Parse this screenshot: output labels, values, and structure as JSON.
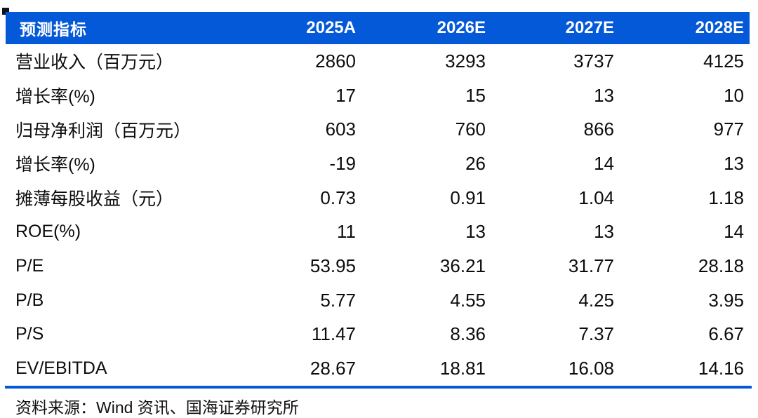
{
  "colors": {
    "header_bg": "#0459d8",
    "header_text": "#ffffff",
    "divider": "#0459d8",
    "body_text": "#0c0c0c",
    "corner_mark": "#10151c"
  },
  "table": {
    "header": {
      "indicator_label": "预测指标",
      "columns": [
        "2025A",
        "2026E",
        "2027E",
        "2028E"
      ]
    },
    "rows": [
      {
        "label": "营业收入（百万元）",
        "values": [
          "2860",
          "3293",
          "3737",
          "4125"
        ]
      },
      {
        "label": "增长率(%)",
        "values": [
          "17",
          "15",
          "13",
          "10"
        ]
      },
      {
        "label": "归母净利润（百万元）",
        "values": [
          "603",
          "760",
          "866",
          "977"
        ]
      },
      {
        "label": "增长率(%)",
        "values": [
          "-19",
          "26",
          "14",
          "13"
        ]
      },
      {
        "label": "摊薄每股收益（元）",
        "values": [
          "0.73",
          "0.91",
          "1.04",
          "1.18"
        ]
      },
      {
        "label": "ROE(%)",
        "values": [
          "11",
          "13",
          "13",
          "14"
        ]
      },
      {
        "label": "P/E",
        "values": [
          "53.95",
          "36.21",
          "31.77",
          "28.18"
        ]
      },
      {
        "label": "P/B",
        "values": [
          "5.77",
          "4.55",
          "4.25",
          "3.95"
        ]
      },
      {
        "label": "P/S",
        "values": [
          "11.47",
          "8.36",
          "7.37",
          "6.67"
        ]
      },
      {
        "label": "EV/EBITDA",
        "values": [
          "28.67",
          "18.81",
          "16.08",
          "14.16"
        ]
      }
    ],
    "source_note": "资料来源：Wind 资讯、国海证券研究所"
  }
}
